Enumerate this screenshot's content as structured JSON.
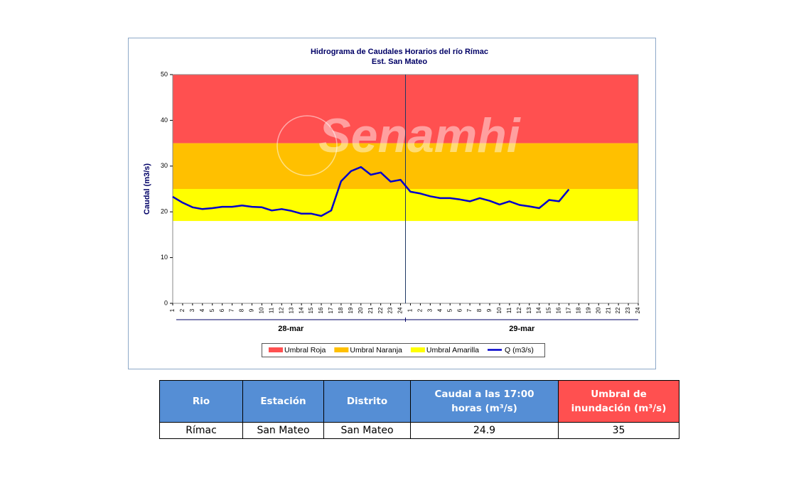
{
  "chart_data": {
    "type": "line",
    "title": "Hidrograma de Caudales Horarios del río Rímac",
    "subtitle": "Est. San Mateo",
    "ylabel": "Caudal  (m3/s)",
    "watermark": "Senamhi",
    "categories": [
      1,
      2,
      3,
      4,
      5,
      6,
      7,
      8,
      9,
      10,
      11,
      12,
      13,
      14,
      15,
      16,
      17,
      18,
      19,
      20,
      21,
      22,
      23,
      24,
      1,
      2,
      3,
      4,
      5,
      6,
      7,
      8,
      9,
      10,
      11,
      12,
      13,
      14,
      15,
      16,
      17,
      18,
      19,
      20,
      21,
      22,
      23,
      24
    ],
    "groups": [
      "28-mar",
      "29-mar"
    ],
    "bands": [
      {
        "name": "Umbral Roja",
        "color": "#ff5050",
        "range": [
          35,
          50
        ]
      },
      {
        "name": "Umbral Naranja",
        "color": "#ffc000",
        "range": [
          25,
          35
        ]
      },
      {
        "name": "Umbral Amarilla",
        "color": "#ffff00",
        "range": [
          18,
          25
        ]
      }
    ],
    "series": [
      {
        "name": "Q (m3/s)",
        "color": "#0000cc",
        "values": [
          23.3,
          22.0,
          21.0,
          20.6,
          20.8,
          21.1,
          21.1,
          21.4,
          21.1,
          21.0,
          20.3,
          20.6,
          20.2,
          19.6,
          19.6,
          19.1,
          20.3,
          26.7,
          28.9,
          29.8,
          28.1,
          28.6,
          26.6,
          27.0,
          24.4,
          24.0,
          23.4,
          23.0,
          23.0,
          22.7,
          22.3,
          23.0,
          22.4,
          21.6,
          22.3,
          21.5,
          21.2,
          20.8,
          22.6,
          22.3,
          24.9,
          null,
          null,
          null,
          null,
          null,
          null,
          null
        ]
      }
    ],
    "ylim": [
      0,
      50
    ],
    "yticks": [
      0,
      10,
      20,
      30,
      40,
      50
    ]
  },
  "table": {
    "headers": [
      "Rio",
      "Estación",
      "Distrito",
      "Caudal a las 17:00 horas (m³/s)",
      "Umbral de inundación (m³/s)"
    ],
    "rows": [
      [
        "Rímac",
        "San Mateo",
        "San Mateo",
        "24.9",
        "35"
      ]
    ]
  }
}
